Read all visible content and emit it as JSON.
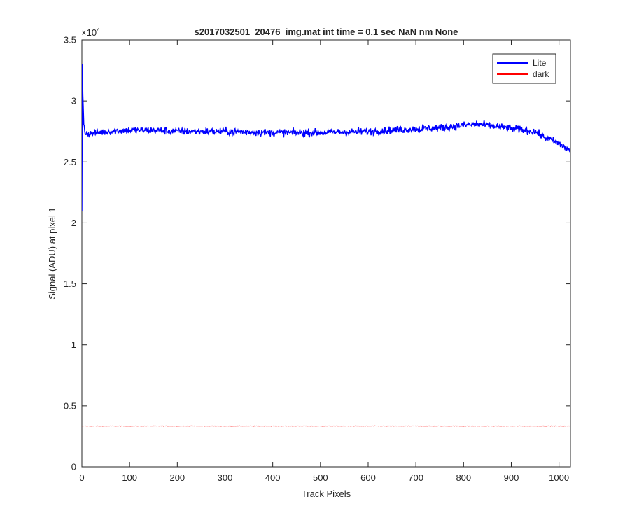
{
  "chart_data": {
    "type": "line",
    "title": "s2017032501_20476_img.mat int time = 0.1 sec  NaN nm None",
    "xlabel": "Track Pixels",
    "ylabel": "Signal (ADU) at pixel 1",
    "xlim": [
      0,
      1024
    ],
    "ylim": [
      0,
      35000
    ],
    "x_ticks": [
      0,
      100,
      200,
      300,
      400,
      500,
      600,
      700,
      800,
      900,
      1000
    ],
    "x_tick_labels": [
      "0",
      "100",
      "200",
      "300",
      "400",
      "500",
      "600",
      "700",
      "800",
      "900",
      "1000"
    ],
    "y_ticks": [
      0,
      5000,
      10000,
      15000,
      20000,
      25000,
      30000,
      35000
    ],
    "y_tick_labels": [
      "0",
      "0.5",
      "1",
      "1.5",
      "2",
      "2.5",
      "3",
      "3.5"
    ],
    "y_exponent_label": "×10",
    "y_exponent_power": "4",
    "grid": false,
    "legend_position": "top-right",
    "series": [
      {
        "name": "Lite",
        "color": "#0000ff",
        "n_points": 1024,
        "anchors": [
          [
            0,
            21000
          ],
          [
            1,
            33000
          ],
          [
            2,
            30500
          ],
          [
            4,
            28200
          ],
          [
            7,
            27400
          ],
          [
            15,
            27300
          ],
          [
            50,
            27500
          ],
          [
            100,
            27600
          ],
          [
            150,
            27600
          ],
          [
            200,
            27500
          ],
          [
            300,
            27500
          ],
          [
            400,
            27400
          ],
          [
            500,
            27400
          ],
          [
            600,
            27500
          ],
          [
            700,
            27700
          ],
          [
            750,
            27800
          ],
          [
            800,
            28000
          ],
          [
            830,
            28100
          ],
          [
            870,
            27900
          ],
          [
            950,
            27500
          ],
          [
            960,
            27200
          ],
          [
            1000,
            26500
          ],
          [
            1023,
            25900
          ]
        ],
        "noise_amplitude": 300
      },
      {
        "name": "dark",
        "color": "#ff0000",
        "n_points": 1024,
        "anchors": [
          [
            0,
            3350
          ],
          [
            1023,
            3350
          ]
        ],
        "noise_amplitude": 15
      }
    ]
  }
}
